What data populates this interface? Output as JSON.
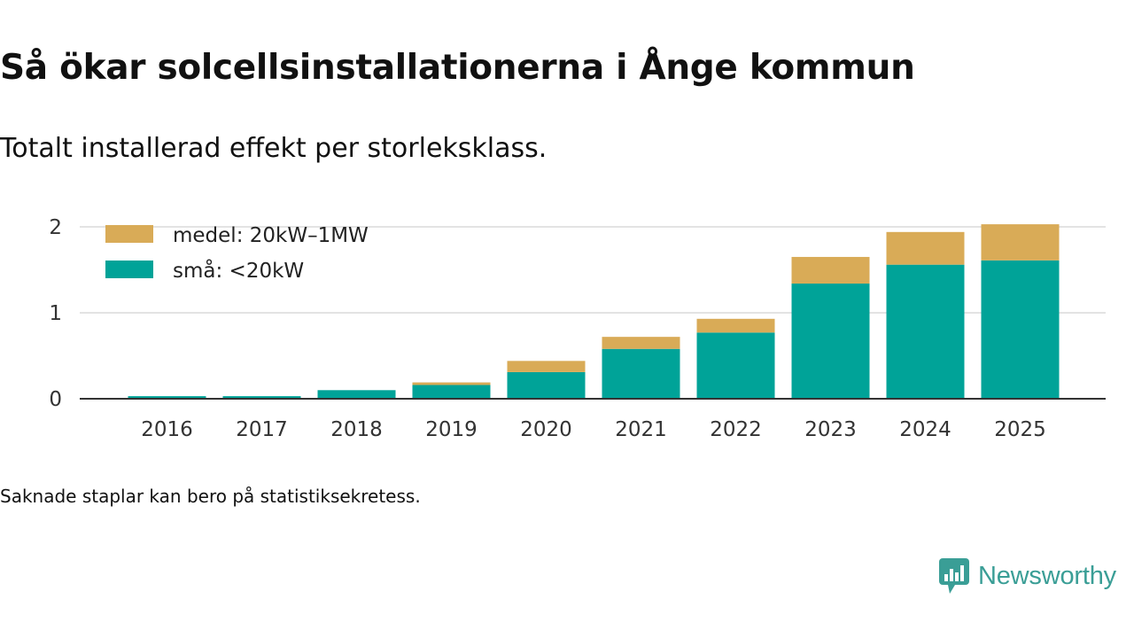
{
  "title": "Så ökar solcellsinstallationerna i Ånge kommun",
  "subtitle": "Totalt installerad effekt per storleksklass.",
  "footnote": "Saknade staplar kan bero på statistiksekretess.",
  "brand": {
    "name": "Newsworthy",
    "icon": "newsworthy-logo-icon",
    "color": "#3a9e96"
  },
  "chart_data": {
    "type": "bar",
    "stacked": true,
    "categories": [
      "2016",
      "2017",
      "2018",
      "2019",
      "2020",
      "2021",
      "2022",
      "2023",
      "2024",
      "2025"
    ],
    "series": [
      {
        "name": "små: <20kW",
        "color": "#00a398",
        "values": [
          0.03,
          0.03,
          0.1,
          0.16,
          0.31,
          0.58,
          0.77,
          1.34,
          1.56,
          1.61
        ]
      },
      {
        "name": "medel: 20kW–1MW",
        "color": "#d9ab57",
        "values": [
          0.0,
          0.0,
          0.0,
          0.03,
          0.13,
          0.14,
          0.16,
          0.31,
          0.38,
          0.42
        ]
      }
    ],
    "legend": [
      {
        "name": "medel: 20kW–1MW",
        "color": "#d9ab57"
      },
      {
        "name": "små: <20kW",
        "color": "#00a398"
      }
    ],
    "legend_position": "top-left",
    "yticks": [
      "0",
      "1",
      "2"
    ],
    "ylim": [
      0,
      2.05
    ],
    "grid": true,
    "xlabel": "",
    "ylabel": ""
  }
}
